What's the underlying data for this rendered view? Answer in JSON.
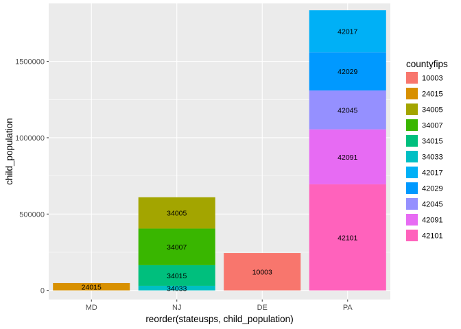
{
  "chart_data": {
    "type": "bar",
    "stacked": true,
    "xlabel": "reorder(stateusps, child_population)",
    "ylabel": "child_population",
    "ylim": [
      -60000,
      1880000
    ],
    "y_ticks": [
      0,
      500000,
      1000000,
      1500000
    ],
    "y_tick_labels": [
      "0",
      "500000",
      "1000000",
      "1500000"
    ],
    "categories": [
      "MD",
      "NJ",
      "DE",
      "PA"
    ],
    "legend": {
      "title": "countyfips",
      "position": "right",
      "entries": [
        {
          "label": "10003",
          "color": "#F8766D"
        },
        {
          "label": "24015",
          "color": "#D89000"
        },
        {
          "label": "34005",
          "color": "#A3A500"
        },
        {
          "label": "34007",
          "color": "#39B600"
        },
        {
          "label": "34015",
          "color": "#00BF7D"
        },
        {
          "label": "34033",
          "color": "#00BFC4"
        },
        {
          "label": "42017",
          "color": "#00B0F6"
        },
        {
          "label": "42029",
          "color": "#0099FF"
        },
        {
          "label": "42045",
          "color": "#9590FF"
        },
        {
          "label": "42091",
          "color": "#E76BF3"
        },
        {
          "label": "42101",
          "color": "#FF62BC"
        }
      ]
    },
    "bars": [
      {
        "category": "MD",
        "segments": [
          {
            "county": "24015",
            "value": 48000
          }
        ]
      },
      {
        "category": "NJ",
        "segments": [
          {
            "county": "34033",
            "value": 30000
          },
          {
            "county": "34015",
            "value": 135000
          },
          {
            "county": "34007",
            "value": 240000
          },
          {
            "county": "34005",
            "value": 205000
          }
        ]
      },
      {
        "category": "DE",
        "segments": [
          {
            "county": "10003",
            "value": 245000
          }
        ]
      },
      {
        "category": "PA",
        "segments": [
          {
            "county": "42101",
            "value": 695000
          },
          {
            "county": "42091",
            "value": 360000
          },
          {
            "county": "42045",
            "value": 255000
          },
          {
            "county": "42029",
            "value": 250000
          },
          {
            "county": "42017",
            "value": 275000
          }
        ]
      }
    ],
    "background": "#EBEBEB",
    "grid": true,
    "grid_color": "#FFFFFF"
  }
}
